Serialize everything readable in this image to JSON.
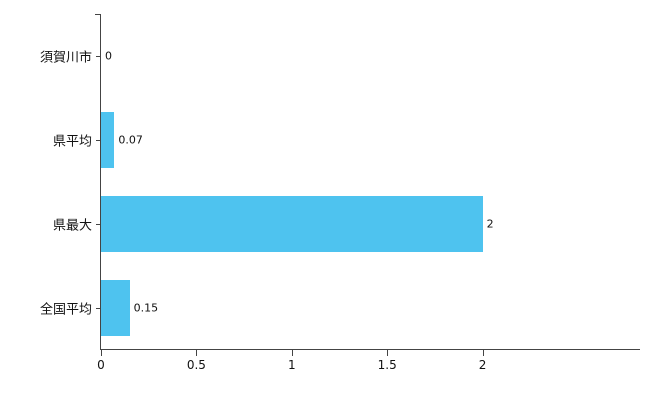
{
  "chart_data": {
    "type": "bar",
    "orientation": "horizontal",
    "title": "",
    "xlabel": "",
    "ylabel": "",
    "categories": [
      "須賀川市",
      "県平均",
      "県最大",
      "全国平均"
    ],
    "values": [
      0,
      0.07,
      2,
      0.15
    ],
    "value_labels": [
      "0",
      "0.07",
      "2",
      "0.15"
    ],
    "xticks": [
      0,
      0.5,
      1,
      1.5,
      2
    ],
    "xtick_labels": [
      "0",
      "0.5",
      "1",
      "1.5",
      "2"
    ],
    "xlim": [
      0,
      2.83
    ],
    "grid": false,
    "legend": false,
    "bar_color": "#4ec3ef",
    "axis_color": "#444444",
    "background_color": "#ffffff",
    "text_color": "#111111"
  }
}
